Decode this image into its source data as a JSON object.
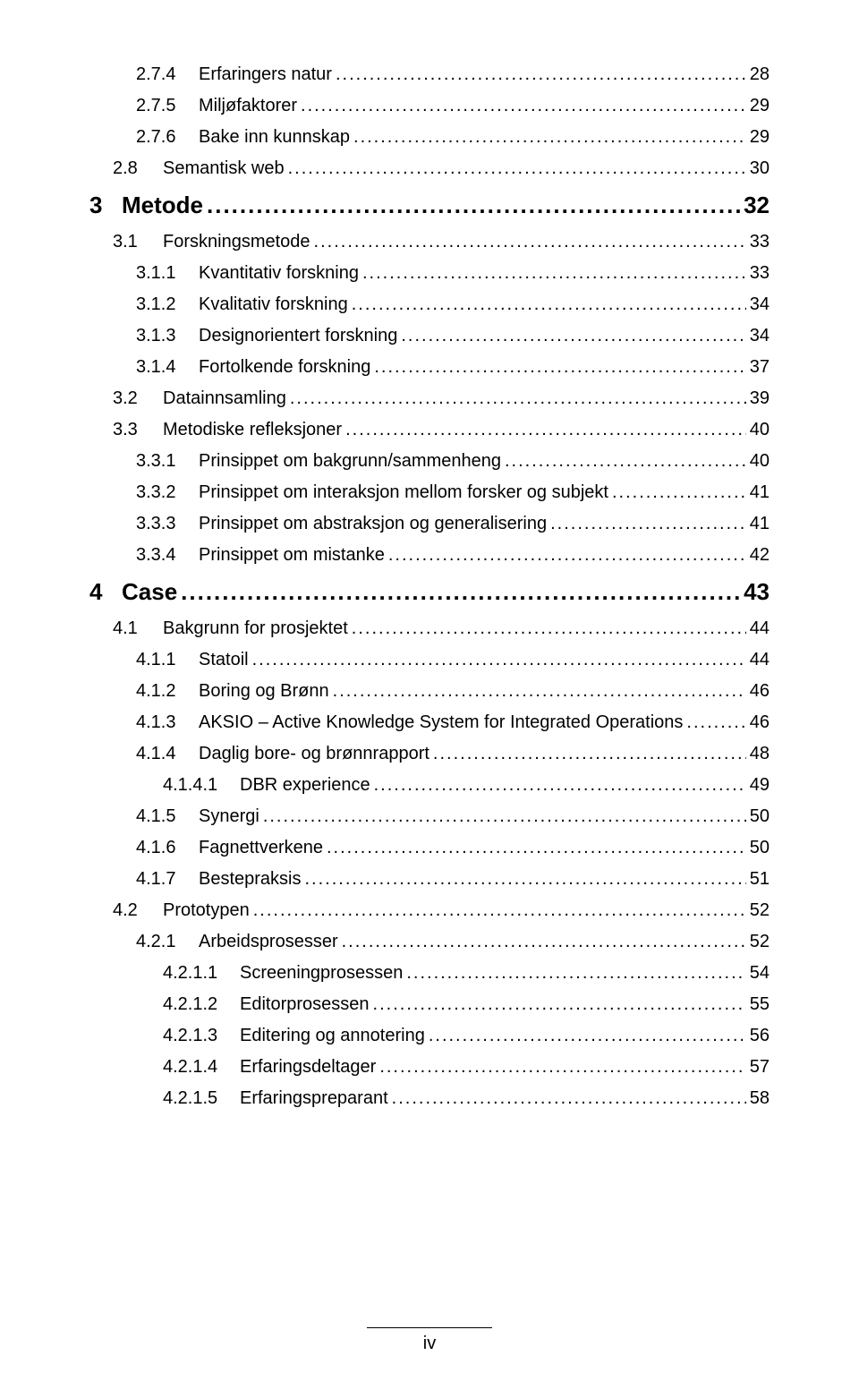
{
  "footer": {
    "page_label": "iv"
  },
  "toc": [
    {
      "level": 3,
      "num": "2.7.4",
      "title": "Erfaringers natur",
      "page": "28"
    },
    {
      "level": 3,
      "num": "2.7.5",
      "title": "Miljøfaktorer",
      "page": "29"
    },
    {
      "level": 3,
      "num": "2.7.6",
      "title": "Bake inn kunnskap",
      "page": "29"
    },
    {
      "level": 2,
      "num": "2.8",
      "title": "Semantisk web",
      "page": "30"
    },
    {
      "level": 1,
      "num": "3",
      "title": "Metode",
      "page": "32"
    },
    {
      "level": 2,
      "num": "3.1",
      "title": "Forskningsmetode",
      "page": "33"
    },
    {
      "level": 3,
      "num": "3.1.1",
      "title": "Kvantitativ forskning",
      "page": "33"
    },
    {
      "level": 3,
      "num": "3.1.2",
      "title": "Kvalitativ forskning",
      "page": "34"
    },
    {
      "level": 3,
      "num": "3.1.3",
      "title": "Designorientert forskning",
      "page": "34"
    },
    {
      "level": 3,
      "num": "3.1.4",
      "title": "Fortolkende forskning",
      "page": "37"
    },
    {
      "level": 2,
      "num": "3.2",
      "title": "Datainnsamling",
      "page": "39"
    },
    {
      "level": 2,
      "num": "3.3",
      "title": "Metodiske refleksjoner",
      "page": "40"
    },
    {
      "level": 3,
      "num": "3.3.1",
      "title": "Prinsippet om bakgrunn/sammenheng",
      "page": "40"
    },
    {
      "level": 3,
      "num": "3.3.2",
      "title": "Prinsippet om interaksjon mellom forsker og subjekt",
      "page": "41"
    },
    {
      "level": 3,
      "num": "3.3.3",
      "title": "Prinsippet om abstraksjon og generalisering",
      "page": "41"
    },
    {
      "level": 3,
      "num": "3.3.4",
      "title": "Prinsippet om mistanke",
      "page": "42"
    },
    {
      "level": 1,
      "num": "4",
      "title": "Case",
      "page": "43"
    },
    {
      "level": 2,
      "num": "4.1",
      "title": "Bakgrunn for prosjektet",
      "page": "44"
    },
    {
      "level": 3,
      "num": "4.1.1",
      "title": "Statoil",
      "page": "44"
    },
    {
      "level": 3,
      "num": "4.1.2",
      "title": "Boring og Brønn",
      "page": "46"
    },
    {
      "level": 3,
      "num": "4.1.3",
      "title": "AKSIO – Active Knowledge System for Integrated Operations",
      "page": "46"
    },
    {
      "level": 3,
      "num": "4.1.4",
      "title": "Daglig bore- og brønnrapport",
      "page": "48"
    },
    {
      "level": 4,
      "num": "4.1.4.1",
      "title": "DBR experience",
      "page": "49"
    },
    {
      "level": 3,
      "num": "4.1.5",
      "title": "Synergi",
      "page": "50"
    },
    {
      "level": 3,
      "num": "4.1.6",
      "title": "Fagnettverkene",
      "page": "50"
    },
    {
      "level": 3,
      "num": "4.1.7",
      "title": "Bestepraksis",
      "page": "51"
    },
    {
      "level": 2,
      "num": "4.2",
      "title": "Prototypen",
      "page": "52"
    },
    {
      "level": 3,
      "num": "4.2.1",
      "title": "Arbeidsprosesser",
      "page": "52"
    },
    {
      "level": 4,
      "num": "4.2.1.1",
      "title": "Screeningprosessen",
      "page": "54"
    },
    {
      "level": 4,
      "num": "4.2.1.2",
      "title": "Editorprosessen",
      "page": "55"
    },
    {
      "level": 4,
      "num": "4.2.1.3",
      "title": "Editering og annotering",
      "page": "56"
    },
    {
      "level": 4,
      "num": "4.2.1.4",
      "title": "Erfaringsdeltager",
      "page": "57"
    },
    {
      "level": 4,
      "num": "4.2.1.5",
      "title": "Erfaringspreparant",
      "page": "58"
    }
  ]
}
